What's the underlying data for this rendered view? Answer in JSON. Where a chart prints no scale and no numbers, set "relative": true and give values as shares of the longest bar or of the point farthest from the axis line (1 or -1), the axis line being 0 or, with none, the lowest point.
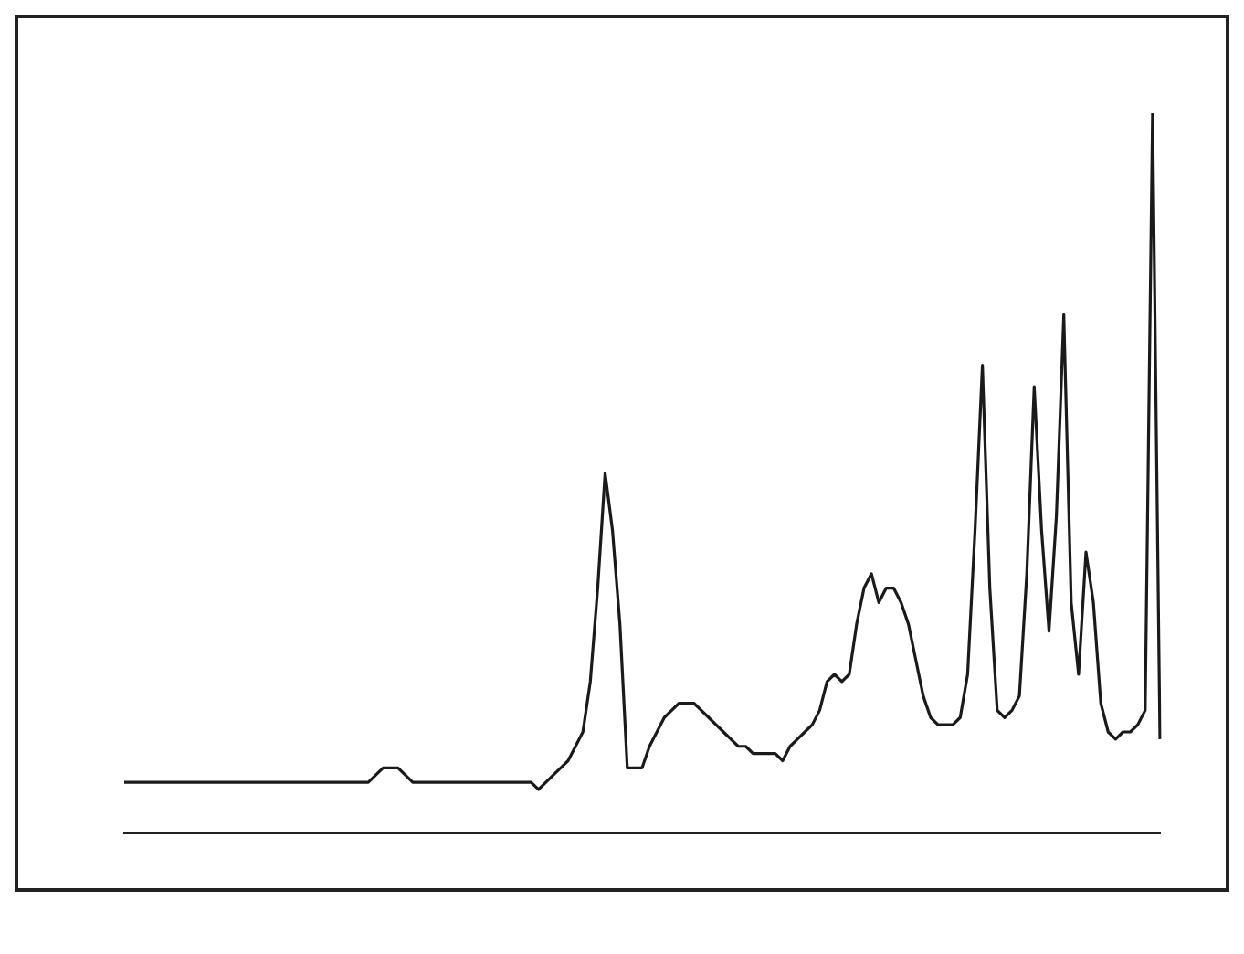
{
  "chart_data": {
    "type": "line",
    "relative": true,
    "grid": false,
    "legend": false,
    "marker": "none",
    "line_style": "solid",
    "categories": [
      null,
      null,
      null,
      null,
      null,
      null,
      null,
      null,
      null,
      null,
      null,
      null,
      null,
      null,
      null,
      null,
      null,
      null,
      null,
      null,
      null,
      null,
      null,
      null,
      null,
      null,
      null,
      null,
      null,
      null,
      null,
      null,
      null,
      null,
      null,
      null,
      null,
      null,
      null,
      null,
      null,
      null,
      null,
      null,
      null,
      null,
      null,
      null,
      null,
      null,
      null,
      null,
      null,
      null,
      null,
      null,
      null,
      null,
      null,
      null,
      null,
      null,
      null,
      null,
      null,
      null,
      null,
      null,
      null,
      null,
      null,
      null,
      null,
      null,
      null,
      null,
      null,
      null,
      null,
      null,
      null,
      null,
      null,
      null,
      null,
      null,
      null,
      null,
      null,
      null,
      null,
      null,
      null,
      null,
      null,
      null,
      null,
      null,
      null,
      null,
      null,
      null,
      null,
      null,
      null,
      null,
      null,
      null,
      null,
      null,
      null,
      null,
      null,
      null,
      null,
      null,
      null,
      null,
      null,
      null,
      null,
      null,
      null,
      null,
      null,
      null,
      null,
      null,
      null,
      null,
      null,
      null,
      null,
      null,
      null,
      null,
      null,
      null,
      null,
      null,
      null
    ],
    "series": [
      {
        "color": "#1a1a1a",
        "values": [
          0.07,
          0.07,
          0.07,
          0.07,
          0.07,
          0.07,
          0.07,
          0.07,
          0.07,
          0.07,
          0.07,
          0.07,
          0.07,
          0.07,
          0.07,
          0.07,
          0.07,
          0.07,
          0.07,
          0.07,
          0.07,
          0.07,
          0.07,
          0.07,
          0.07,
          0.07,
          0.07,
          0.07,
          0.07,
          0.07,
          0.07,
          0.07,
          0.07,
          0.07,
          0.08,
          0.09,
          0.09,
          0.09,
          0.08,
          0.07,
          0.07,
          0.07,
          0.07,
          0.07,
          0.07,
          0.07,
          0.07,
          0.07,
          0.07,
          0.07,
          0.07,
          0.07,
          0.07,
          0.07,
          0.07,
          0.07,
          0.06,
          0.07,
          0.08,
          0.09,
          0.1,
          0.12,
          0.14,
          0.21,
          0.34,
          0.5,
          0.42,
          0.29,
          0.09,
          0.09,
          0.09,
          0.12,
          0.14,
          0.16,
          0.17,
          0.18,
          0.18,
          0.18,
          0.17,
          0.16,
          0.15,
          0.14,
          0.13,
          0.12,
          0.12,
          0.11,
          0.11,
          0.11,
          0.11,
          0.1,
          0.12,
          0.13,
          0.14,
          0.15,
          0.17,
          0.21,
          0.22,
          0.21,
          0.22,
          0.29,
          0.34,
          0.36,
          0.32,
          0.34,
          0.34,
          0.32,
          0.29,
          0.24,
          0.19,
          0.16,
          0.15,
          0.15,
          0.15,
          0.16,
          0.22,
          0.42,
          0.65,
          0.34,
          0.17,
          0.16,
          0.17,
          0.19,
          0.36,
          0.62,
          0.42,
          0.28,
          0.44,
          0.72,
          0.32,
          0.22,
          0.39,
          0.32,
          0.18,
          0.14,
          0.13,
          0.14,
          0.14,
          0.15,
          0.17,
          1,
          0.13
        ]
      }
    ]
  }
}
